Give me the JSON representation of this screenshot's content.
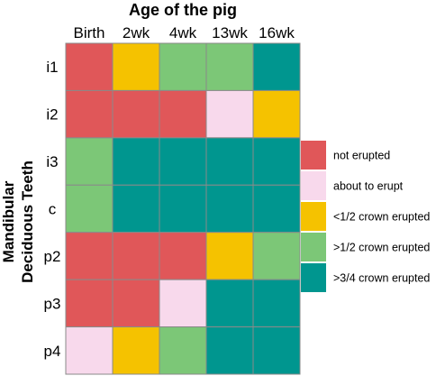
{
  "chart_data": {
    "type": "heatmap",
    "title": "Age of the pig",
    "ylabel": [
      "Mandibular",
      "Deciduous Teeth"
    ],
    "columns": [
      "Birth",
      "2wk",
      "4wk",
      "13wk",
      "16wk"
    ],
    "rows": [
      "i1",
      "i2",
      "i3",
      "c",
      "p2",
      "p3",
      "p4"
    ],
    "categories": [
      {
        "key": "not",
        "label": "not erupted",
        "color": "#E05759"
      },
      {
        "key": "about",
        "label": "about to erupt",
        "color": "#F8D9EC"
      },
      {
        "key": "lt_half",
        "label": "<1/2 crown erupted",
        "color": "#F5C200"
      },
      {
        "key": "gt_half",
        "label": ">1/2 crown erupted",
        "color": "#7CC777"
      },
      {
        "key": "gt_3q",
        "label": ">3/4 crown erupted",
        "color": "#00968F"
      }
    ],
    "values": [
      [
        "not",
        "lt_half",
        "gt_half",
        "gt_half",
        "gt_3q"
      ],
      [
        "not",
        "not",
        "not",
        "about",
        "lt_half"
      ],
      [
        "gt_half",
        "gt_3q",
        "gt_3q",
        "gt_3q",
        "gt_3q"
      ],
      [
        "gt_half",
        "gt_3q",
        "gt_3q",
        "gt_3q",
        "gt_3q"
      ],
      [
        "not",
        "not",
        "not",
        "lt_half",
        "gt_half"
      ],
      [
        "not",
        "not",
        "about",
        "gt_3q",
        "gt_3q"
      ],
      [
        "about",
        "lt_half",
        "gt_half",
        "gt_3q",
        "gt_3q"
      ]
    ],
    "legend_position": "right"
  }
}
